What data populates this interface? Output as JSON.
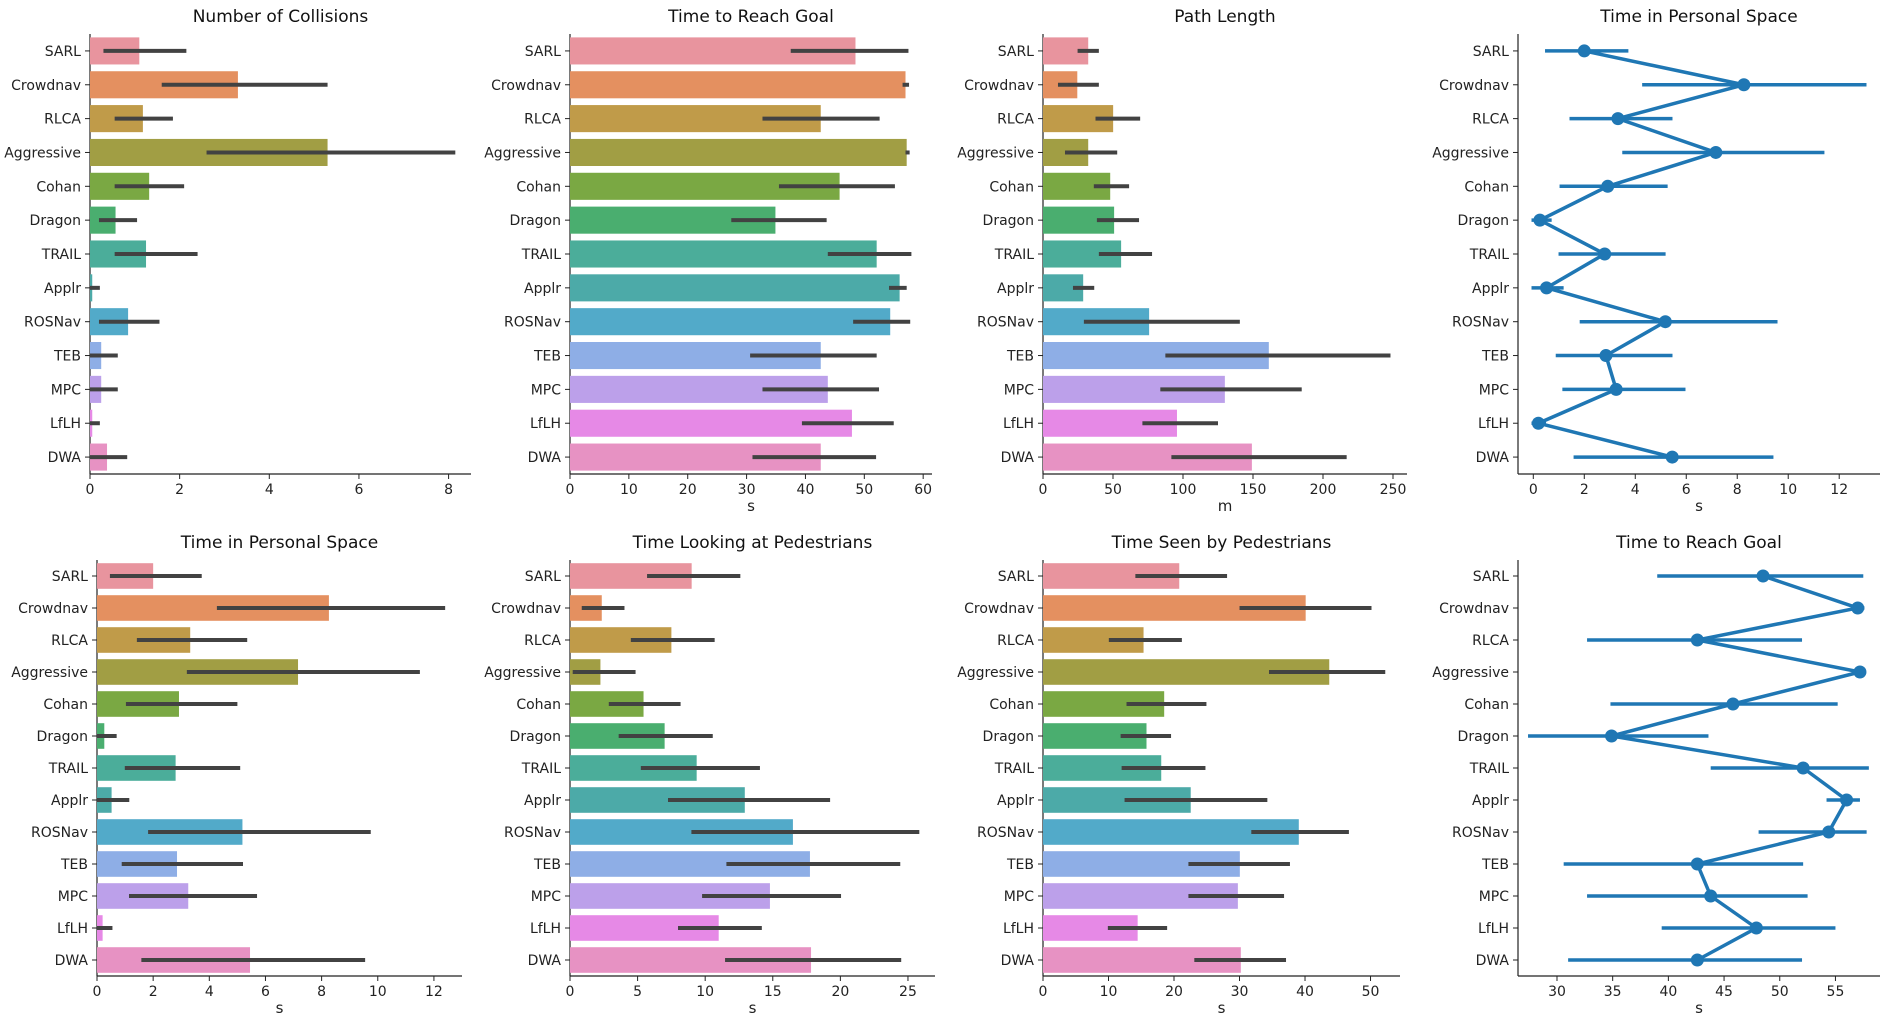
{
  "chart_data": [
    {
      "type": "bar",
      "title": "Number of Collisions",
      "xlabel": "",
      "categories": [
        "SARL",
        "Crowdnav",
        "RLCA",
        "Aggressive",
        "Cohan",
        "Dragon",
        "TRAIL",
        "Applr",
        "ROSNav",
        "TEB",
        "MPC",
        "LfLH",
        "DWA"
      ],
      "values": [
        1.1,
        3.3,
        1.18,
        5.3,
        1.32,
        0.57,
        1.25,
        0.05,
        0.85,
        0.25,
        0.25,
        0.05,
        0.38
      ],
      "ci_low": [
        0.3,
        1.6,
        0.55,
        2.6,
        0.55,
        0.2,
        0.55,
        0,
        0.2,
        0,
        0,
        0,
        0
      ],
      "ci_high": [
        2.15,
        5.3,
        1.85,
        8.15,
        2.1,
        1.05,
        2.4,
        0.22,
        1.55,
        0.62,
        0.62,
        0.22,
        0.83
      ],
      "xlim": [
        0,
        8.5
      ],
      "xticks": [
        "0",
        "2",
        "4",
        "6",
        "8"
      ]
    },
    {
      "type": "bar",
      "title": "Time to Reach Goal",
      "xlabel": "s",
      "categories": [
        "SARL",
        "Crowdnav",
        "RLCA",
        "Aggressive",
        "Cohan",
        "Dragon",
        "TRAIL",
        "Applr",
        "ROSNav",
        "TEB",
        "MPC",
        "LfLH",
        "DWA"
      ],
      "values": [
        48.5,
        57.0,
        42.6,
        57.2,
        45.8,
        34.9,
        52.1,
        56.0,
        54.4,
        42.6,
        43.8,
        47.9,
        42.6
      ],
      "ci_low": [
        37.5,
        56.5,
        32.7,
        57.0,
        35.5,
        27.4,
        43.8,
        54.2,
        48.1,
        30.6,
        32.7,
        39.4,
        31.0
      ],
      "ci_high": [
        57.5,
        57.6,
        52.6,
        57.7,
        55.2,
        43.6,
        58.0,
        57.2,
        57.8,
        52.1,
        52.5,
        55.0,
        52.0
      ],
      "xlim": [
        0,
        61.5
      ],
      "xticks": [
        "0",
        "10",
        "20",
        "30",
        "40",
        "50",
        "60"
      ]
    },
    {
      "type": "bar",
      "title": "Path Length",
      "xlabel": "m",
      "categories": [
        "SARL",
        "Crowdnav",
        "RLCA",
        "Aggressive",
        "Cohan",
        "Dragon",
        "TRAIL",
        "Applr",
        "ROSNav",
        "TEB",
        "MPC",
        "LfLH",
        "DWA"
      ],
      "values": [
        32.3,
        24.5,
        50.1,
        32.3,
        48.0,
        50.8,
        55.8,
        28.7,
        75.8,
        161.3,
        129.9,
        95.7,
        149.2
      ],
      "ci_low": [
        24.7,
        10.7,
        37.5,
        15.7,
        36.3,
        38.5,
        39.9,
        21.4,
        29.2,
        87.4,
        83.8,
        71.0,
        91.7
      ],
      "ci_high": [
        39.9,
        39.9,
        69.4,
        53.0,
        61.5,
        68.6,
        77.9,
        36.6,
        140.6,
        248.2,
        184.8,
        125.0,
        216.9
      ],
      "xlim": [
        0,
        260
      ],
      "xticks": [
        "0",
        "50",
        "100",
        "150",
        "200",
        "250"
      ]
    },
    {
      "type": "point",
      "title": "Time in Personal Space",
      "xlabel": "s",
      "categories": [
        "SARL",
        "Crowdnav",
        "RLCA",
        "Aggressive",
        "Cohan",
        "Dragon",
        "TRAIL",
        "Applr",
        "ROSNav",
        "TEB",
        "MPC",
        "LfLH",
        "DWA"
      ],
      "values": [
        2.0,
        8.26,
        3.32,
        7.16,
        2.92,
        0.26,
        2.8,
        0.52,
        5.18,
        2.85,
        3.25,
        0.2,
        5.45
      ],
      "ci_low": [
        0.46,
        4.27,
        1.42,
        3.49,
        1.03,
        -0.07,
        0.99,
        -0.07,
        1.82,
        0.88,
        1.14,
        -0.07,
        1.58
      ],
      "ci_high": [
        3.73,
        13.07,
        5.46,
        11.42,
        5.27,
        0.72,
        5.19,
        1.19,
        9.58,
        5.46,
        5.97,
        0.5,
        9.42
      ],
      "xlim": [
        -0.6,
        13.6
      ],
      "xticks": [
        "0",
        "2",
        "4",
        "6",
        "8",
        "10",
        "12"
      ]
    },
    {
      "type": "bar",
      "title": "Time in Personal Space",
      "xlabel": "s",
      "categories": [
        "SARL",
        "Crowdnav",
        "RLCA",
        "Aggressive",
        "Cohan",
        "Dragon",
        "TRAIL",
        "Applr",
        "ROSNav",
        "TEB",
        "MPC",
        "LfLH",
        "DWA"
      ],
      "values": [
        2.0,
        8.26,
        3.32,
        7.16,
        2.92,
        0.26,
        2.8,
        0.52,
        5.18,
        2.85,
        3.25,
        0.2,
        5.45
      ],
      "ci_low": [
        0.46,
        4.27,
        1.42,
        3.2,
        1.03,
        0,
        0.99,
        0,
        1.82,
        0.88,
        1.14,
        0,
        1.58
      ],
      "ci_high": [
        3.73,
        12.4,
        5.35,
        11.5,
        5.0,
        0.7,
        5.1,
        1.15,
        9.75,
        5.2,
        5.7,
        0.55,
        9.55
      ],
      "xlim": [
        0,
        13
      ],
      "xticks": [
        "0",
        "2",
        "4",
        "6",
        "8",
        "10",
        "12"
      ]
    },
    {
      "type": "bar",
      "title": "Time Looking at Pedestrians",
      "xlabel": "s",
      "categories": [
        "SARL",
        "Crowdnav",
        "RLCA",
        "Aggressive",
        "Cohan",
        "Dragon",
        "TRAIL",
        "Applr",
        "ROSNav",
        "TEB",
        "MPC",
        "LfLH",
        "DWA"
      ],
      "values": [
        9.0,
        2.35,
        7.5,
        2.25,
        5.44,
        7.0,
        9.37,
        12.93,
        16.49,
        17.75,
        14.79,
        11.0,
        17.83
      ],
      "ci_low": [
        5.7,
        0.87,
        4.5,
        0.2,
        2.87,
        3.6,
        5.24,
        7.25,
        8.98,
        11.57,
        9.77,
        7.99,
        11.47
      ],
      "ci_high": [
        12.6,
        4.03,
        10.7,
        4.85,
        8.18,
        10.56,
        14.05,
        19.24,
        25.84,
        24.43,
        20.05,
        14.19,
        24.5
      ],
      "xlim": [
        0,
        27
      ],
      "xticks": [
        "0",
        "5",
        "10",
        "15",
        "20",
        "25"
      ]
    },
    {
      "type": "bar",
      "title": "Time Seen by Pedestrians",
      "xlabel": "s",
      "categories": [
        "SARL",
        "Crowdnav",
        "RLCA",
        "Aggressive",
        "Cohan",
        "Dragon",
        "TRAIL",
        "Applr",
        "ROSNav",
        "TEB",
        "MPC",
        "LfLH",
        "DWA"
      ],
      "values": [
        20.8,
        40.1,
        15.35,
        43.7,
        18.5,
        15.8,
        18.05,
        22.55,
        39.05,
        30.05,
        29.75,
        14.45,
        30.2
      ],
      "ci_low": [
        14.1,
        30.0,
        10.05,
        34.5,
        12.75,
        11.85,
        12.0,
        12.45,
        31.8,
        22.2,
        22.2,
        9.9,
        23.1
      ],
      "ci_high": [
        28.1,
        50.15,
        21.2,
        52.25,
        24.95,
        19.55,
        24.8,
        34.25,
        46.7,
        37.7,
        36.8,
        18.95,
        37.1
      ],
      "xlim": [
        0,
        54.5
      ],
      "xticks": [
        "0",
        "10",
        "20",
        "30",
        "40",
        "50"
      ]
    },
    {
      "type": "point",
      "title": "Time to Reach Goal",
      "xlabel": "s",
      "categories": [
        "SARL",
        "Crowdnav",
        "RLCA",
        "Aggressive",
        "Cohan",
        "Dragon",
        "TRAIL",
        "Applr",
        "ROSNav",
        "TEB",
        "MPC",
        "LfLH",
        "DWA"
      ],
      "values": [
        48.5,
        57.0,
        42.6,
        57.2,
        45.8,
        34.9,
        52.1,
        56.0,
        54.4,
        42.6,
        43.8,
        47.9,
        42.6
      ],
      "ci_low": [
        39.0,
        56.5,
        32.7,
        57.0,
        34.8,
        27.4,
        43.8,
        54.2,
        48.1,
        30.6,
        32.7,
        39.4,
        31.0
      ],
      "ci_high": [
        57.5,
        57.6,
        52.0,
        57.7,
        55.2,
        43.6,
        58.0,
        57.2,
        57.8,
        52.1,
        52.5,
        55.0,
        52.0
      ],
      "xlim": [
        26.5,
        59
      ],
      "xticks": [
        "30",
        "35",
        "40",
        "45",
        "50",
        "55"
      ]
    }
  ],
  "colors": {
    "categories": [
      "#e8949e",
      "#e49060",
      "#c09b49",
      "#a19e44",
      "#7aa843",
      "#4aae6f",
      "#4bad9a",
      "#4caaa8",
      "#52aac9",
      "#8eaee6",
      "#bca0ea",
      "#e689e6",
      "#e792c3"
    ],
    "errorbar": "#424242",
    "point": "#1f77b4"
  }
}
